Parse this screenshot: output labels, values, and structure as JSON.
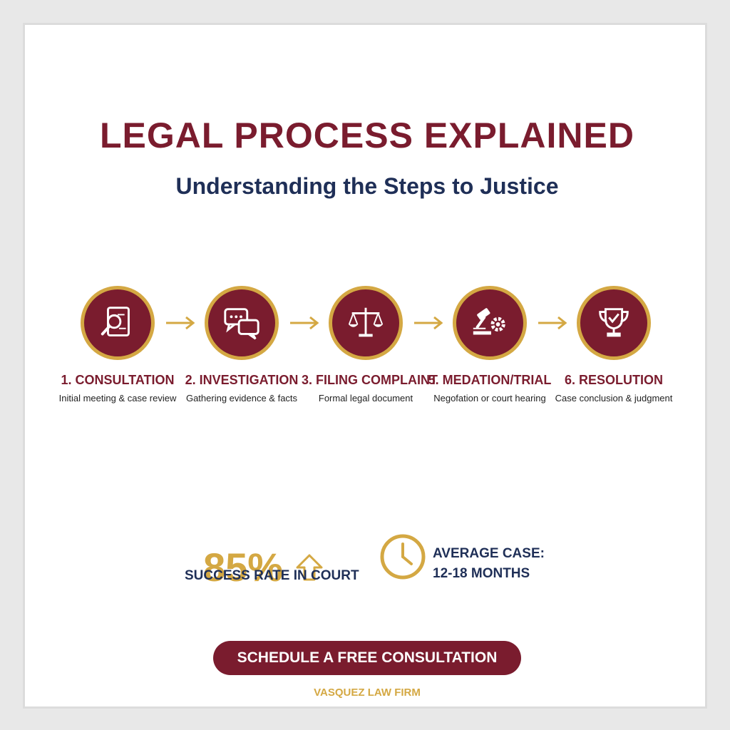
{
  "header": {
    "title": "LEGAL PROCESS EXPLAINED",
    "subtitle": "Understanding the Steps to Justice"
  },
  "steps": [
    {
      "label": "1. CONSULTATION",
      "description": "Initial meeting & case review",
      "icon": "document-search-icon"
    },
    {
      "label": "2. INVESTIGATION",
      "description": "Gathering evidence & facts",
      "icon": "chat-bubbles-icon"
    },
    {
      "label": "3. FILING COMPLAINT",
      "description": "Formal legal document",
      "icon": "scales-icon"
    },
    {
      "label": "5. MEDATION/TRIAL",
      "description": "Negofation or court hearing",
      "icon": "gavel-gear-icon"
    },
    {
      "label": "6. RESOLUTION",
      "description": "Case conclusion & judgment",
      "icon": "trophy-icon"
    }
  ],
  "stats": {
    "success_value": "85%",
    "success_label": "SUCCESS RATE IN COURT",
    "average_line1": "AVERAGE CASE:",
    "average_line2": "12-18 MONTHS"
  },
  "cta": {
    "label": "SCHEDULE A FREE CONSULTATION"
  },
  "footer": {
    "firm_name": "VASQUEZ LAW FIRM"
  },
  "colors": {
    "maroon": "#7a1c2e",
    "gold": "#d4a843",
    "navy": "#1f2f57"
  }
}
